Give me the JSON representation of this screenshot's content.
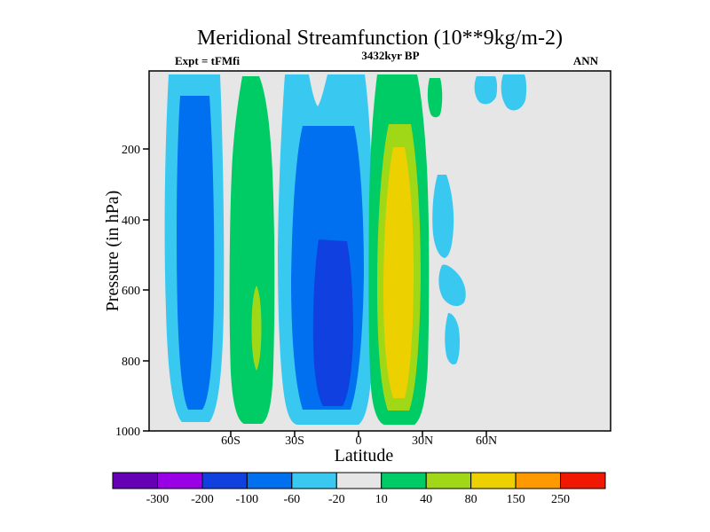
{
  "header": {
    "title": "Meridional Streamfunction (10**9kg/m-2)",
    "subtitle_left": "Expt = tFMfi",
    "subtitle_center": "3432kyr BP",
    "subtitle_right": "ANN"
  },
  "axes": {
    "x_label": "Latitude",
    "y_label": "Pressure (in hPa)",
    "x_ticks": [
      "60S",
      "30S",
      "0",
      "30N",
      "60N"
    ],
    "y_ticks": [
      "200",
      "400",
      "600",
      "800",
      "1000"
    ]
  },
  "colorbar": {
    "labels": [
      "-300",
      "-200",
      "-100",
      "-60",
      "-20",
      "10",
      "40",
      "80",
      "150",
      "250"
    ],
    "colors": [
      "#6600b4",
      "#9900e6",
      "#1040e0",
      "#0070f0",
      "#38c8f0",
      "#e6e6e6",
      "#00cc66",
      "#a0d818",
      "#ecd000",
      "#ff9900",
      "#f01800"
    ]
  },
  "chart_data": {
    "type": "heatmap",
    "subtype": "filled-contour-latitude-pressure-section",
    "title": "Meridional Streamfunction (10**9kg/m-2)",
    "subtitle_left": "Expt = tFMfi",
    "subtitle_center": "3432kyr BP",
    "subtitle_right": "ANN",
    "xlabel": "Latitude",
    "ylabel": "Pressure (in hPa)",
    "x_tick_labels": [
      "60S",
      "30S",
      "0",
      "30N",
      "60N"
    ],
    "y_tick_values": [
      200,
      400,
      600,
      800,
      1000
    ],
    "y_axis_inverted": true,
    "units": "10**9 kg/m-2",
    "contour_levels": [
      -300,
      -200,
      -100,
      -60,
      -20,
      10,
      40,
      80,
      150,
      250
    ],
    "level_colors": [
      "#6600b4",
      "#9900e6",
      "#1040e0",
      "#0070f0",
      "#38c8f0",
      "#e6e6e6",
      "#00cc66",
      "#a0d818",
      "#ecd000",
      "#ff9900",
      "#f01800"
    ],
    "background_band": "-20 to 10 (light gray)",
    "cells": [
      {
        "name": "southern high-latitude negative cell",
        "lat_extent": "poleward of 60S",
        "pressure_extent": "top to 1000 hPa",
        "extreme_band": "-100 to -60"
      },
      {
        "name": "southern mid-latitude positive (Ferrel) cell",
        "lat_extent": "about 65S-45S",
        "pressure_extent": "top to 1000 hPa",
        "extreme_band": "40 to 80 (small core near 600-800 hPa)"
      },
      {
        "name": "southern Hadley negative cell",
        "lat_extent": "about 40S-0",
        "pressure_extent": "top to 1000 hPa",
        "extreme_band": "-200 to -100 (core 600-950 hPa)"
      },
      {
        "name": "northern Hadley positive cell",
        "lat_extent": "about 0-30N",
        "pressure_extent": "150 to 1000 hPa",
        "extreme_band": "80 to 150 (tall yellow core)"
      },
      {
        "name": "northern mid-latitude weak negative patches",
        "lat_extent": "about 30N-55N",
        "pressure_extent": "scattered 200-800 hPa",
        "extreme_band": "-60 to -20"
      },
      {
        "name": "high-northern-latitude weak negative patches near top",
        "lat_extent": "about 55N-80N",
        "pressure_extent": "near 100-200 hPa",
        "extreme_band": "-60 to -20"
      }
    ]
  }
}
